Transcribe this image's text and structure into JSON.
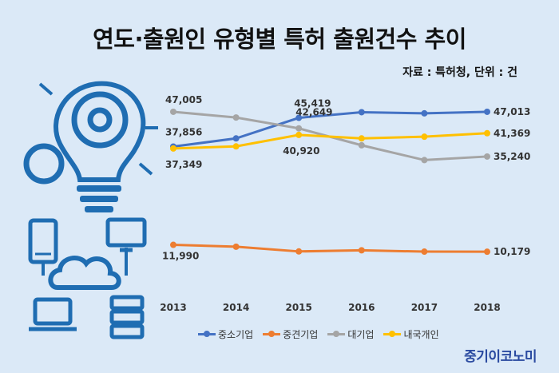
{
  "header": {
    "title": "연도·출원인 유형별 특허 출원건수 추이",
    "source": "자료 : 특허청, 단위 : 건"
  },
  "brand": "중기이코노미",
  "illustration": {
    "icons": [
      "lightbulb-gears-icon",
      "smartphone-icon",
      "laptop-icon",
      "cloud-icon",
      "monitor-icon",
      "server-icon"
    ]
  },
  "chart_data": {
    "type": "line",
    "title": "",
    "xlabel": "",
    "ylabel": "",
    "categories": [
      "2013",
      "2014",
      "2015",
      "2016",
      "2017",
      "2018"
    ],
    "grid": false,
    "legend_position": "bottom",
    "series": [
      {
        "name": "중소기업",
        "color": "#4472c4",
        "values": [
          37856,
          40000,
          45419,
          46900,
          46600,
          47013
        ],
        "labels": {
          "0": "37,856",
          "2": "45,419",
          "5": "47,013"
        }
      },
      {
        "name": "중견기업",
        "color": "#ed7d31",
        "values": [
          11990,
          11500,
          10250,
          10550,
          10200,
          10179
        ],
        "labels": {
          "0": "11,990",
          "5": "10,179"
        }
      },
      {
        "name": "대기업",
        "color": "#a5a5a5",
        "values": [
          47005,
          45500,
          42649,
          38200,
          34300,
          35240
        ],
        "labels": {
          "0": "47,005",
          "2": "42,649",
          "5": "35,240"
        }
      },
      {
        "name": "내국개인",
        "color": "#ffc000",
        "values": [
          37349,
          37900,
          40920,
          40000,
          40450,
          41369
        ],
        "labels": {
          "0": "37,349",
          "2": "40,920",
          "5": "41,369"
        }
      }
    ]
  }
}
